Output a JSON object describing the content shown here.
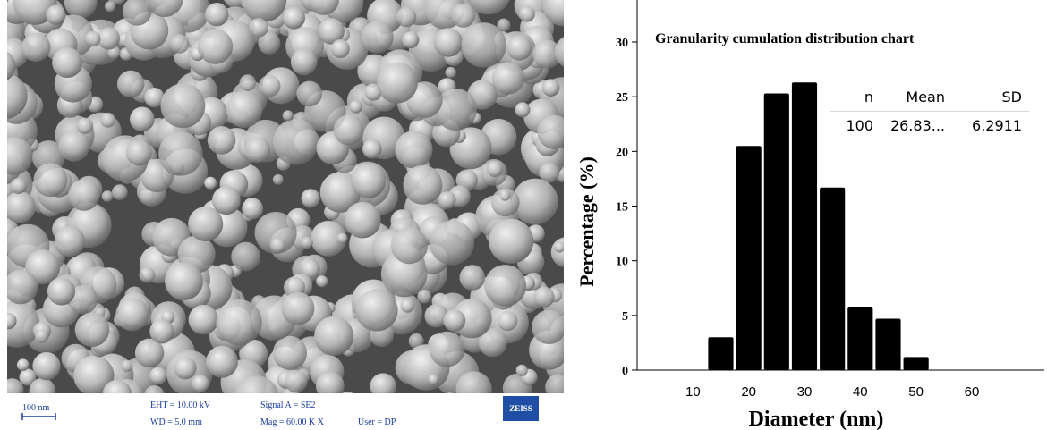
{
  "sem_panel": {
    "scale_bar_label": "100 nm",
    "eht": "EHT = 10.00 kV",
    "wd": "WD =  5.0 mm",
    "signal": "Signal A = SE2",
    "mag": "Mag =  60.00 K X",
    "user": "User =  DP",
    "logo_text": "ZEISS"
  },
  "stats_table": {
    "headers": [
      "n",
      "Mean",
      "SD"
    ],
    "row": [
      "100",
      "26.83...",
      "6.2911"
    ]
  },
  "chart_data": {
    "type": "bar",
    "title": "Granularity cumulation distribution chart",
    "xlabel": "Diameter (nm)",
    "ylabel": "Percentage (%)",
    "x_ticks": [
      "10",
      "20",
      "30",
      "40",
      "50",
      "60"
    ],
    "x_tick_values": [
      10,
      20,
      30,
      40,
      50,
      60
    ],
    "y_ticks": [
      "0",
      "5",
      "10",
      "15",
      "20",
      "25",
      "30"
    ],
    "y_tick_values": [
      0,
      5,
      10,
      15,
      20,
      25,
      30
    ],
    "xlim": [
      0,
      73
    ],
    "ylim": [
      0,
      30
    ],
    "bin_width": 5,
    "bins": [
      {
        "center": 15,
        "value": 3
      },
      {
        "center": 20,
        "value": 20.5
      },
      {
        "center": 25,
        "value": 25.3
      },
      {
        "center": 30,
        "value": 26.3
      },
      {
        "center": 35,
        "value": 16.7
      },
      {
        "center": 40,
        "value": 5.8
      },
      {
        "center": 45,
        "value": 4.7
      },
      {
        "center": 50,
        "value": 1.2
      }
    ],
    "bar_color": "#000000",
    "grid": false
  }
}
